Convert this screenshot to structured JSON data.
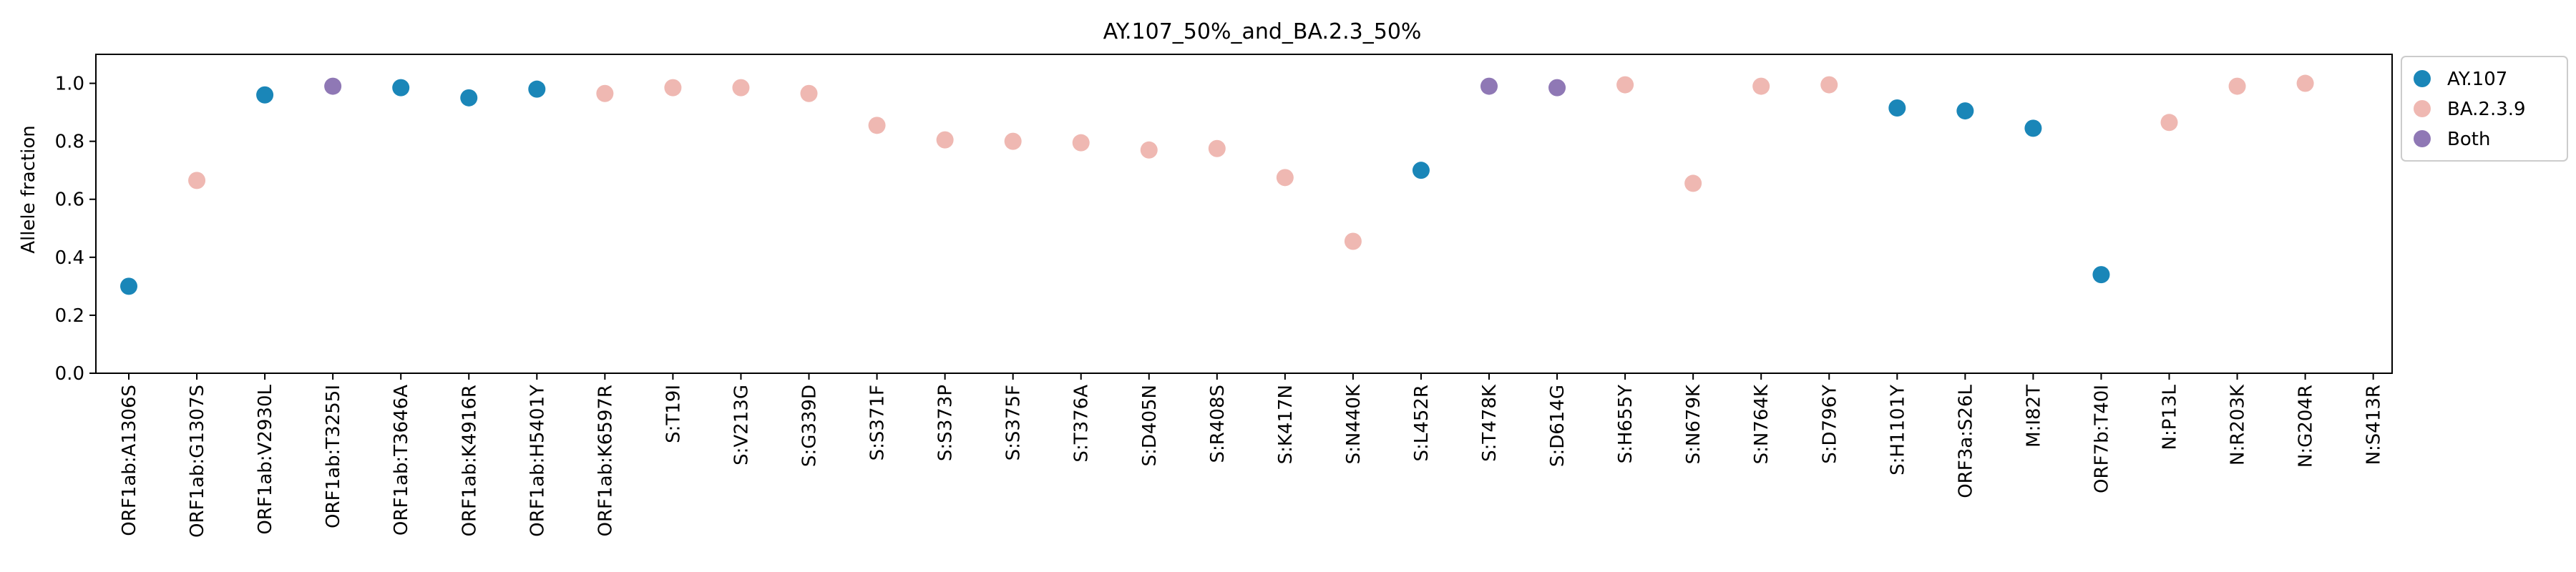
{
  "chart_data": {
    "type": "scatter",
    "title": "AY.107_50%_and_BA.2.3_50%",
    "xlabel": "",
    "ylabel": "Allele fraction",
    "ylim": [
      0,
      1.1
    ],
    "yticks": [
      "0.0",
      "0.2",
      "0.4",
      "0.6",
      "0.8",
      "1.0"
    ],
    "grid": false,
    "legend_position": "outside-top-right",
    "categories": [
      "ORF1ab:A1306S",
      "ORF1ab:G1307S",
      "ORF1ab:V2930L",
      "ORF1ab:T3255I",
      "ORF1ab:T3646A",
      "ORF1ab:K4916R",
      "ORF1ab:H5401Y",
      "ORF1ab:K6597R",
      "S:T19I",
      "S:V213G",
      "S:G339D",
      "S:S371F",
      "S:S373P",
      "S:S375F",
      "S:T376A",
      "S:D405N",
      "S:R408S",
      "S:K417N",
      "S:N440K",
      "S:L452R",
      "S:T478K",
      "S:D614G",
      "S:H655Y",
      "S:N679K",
      "S:N764K",
      "S:D796Y",
      "S:H1101Y",
      "ORF3a:S26L",
      "M:I82T",
      "ORF7b:T40I",
      "N:P13L",
      "N:R203K",
      "N:G204R",
      "N:S413R"
    ],
    "series": [
      {
        "name": "AY.107",
        "color": "#1a86b8",
        "points": [
          {
            "x": "ORF1ab:A1306S",
            "y": 0.3
          },
          {
            "x": "ORF1ab:V2930L",
            "y": 0.96
          },
          {
            "x": "ORF1ab:T3646A",
            "y": 0.985
          },
          {
            "x": "ORF1ab:K4916R",
            "y": 0.95
          },
          {
            "x": "ORF1ab:H5401Y",
            "y": 0.98
          },
          {
            "x": "S:L452R",
            "y": 0.7
          },
          {
            "x": "S:H1101Y",
            "y": 0.915
          },
          {
            "x": "ORF3a:S26L",
            "y": 0.905
          },
          {
            "x": "M:I82T",
            "y": 0.845
          },
          {
            "x": "ORF7b:T40I",
            "y": 0.34
          }
        ]
      },
      {
        "name": "BA.2.3.9",
        "color": "#efb8b2",
        "points": [
          {
            "x": "ORF1ab:G1307S",
            "y": 0.665
          },
          {
            "x": "ORF1ab:K6597R",
            "y": 0.965
          },
          {
            "x": "S:T19I",
            "y": 0.985
          },
          {
            "x": "S:V213G",
            "y": 0.985
          },
          {
            "x": "S:G339D",
            "y": 0.965
          },
          {
            "x": "S:S371F",
            "y": 0.855
          },
          {
            "x": "S:S373P",
            "y": 0.805
          },
          {
            "x": "S:S375F",
            "y": 0.8
          },
          {
            "x": "S:T376A",
            "y": 0.795
          },
          {
            "x": "S:D405N",
            "y": 0.77
          },
          {
            "x": "S:R408S",
            "y": 0.775
          },
          {
            "x": "S:K417N",
            "y": 0.675
          },
          {
            "x": "S:N440K",
            "y": 0.455
          },
          {
            "x": "S:H655Y",
            "y": 0.995
          },
          {
            "x": "S:N679K",
            "y": 0.655
          },
          {
            "x": "S:N764K",
            "y": 0.99
          },
          {
            "x": "S:D796Y",
            "y": 0.995
          },
          {
            "x": "N:P13L",
            "y": 0.865
          },
          {
            "x": "N:R203K",
            "y": 0.99
          },
          {
            "x": "N:G204R",
            "y": 1.0
          }
        ]
      },
      {
        "name": "Both",
        "color": "#8f78b5",
        "points": [
          {
            "x": "ORF1ab:T3255I",
            "y": 0.99
          },
          {
            "x": "S:T478K",
            "y": 0.99
          },
          {
            "x": "S:D614G",
            "y": 0.985
          }
        ]
      }
    ]
  }
}
